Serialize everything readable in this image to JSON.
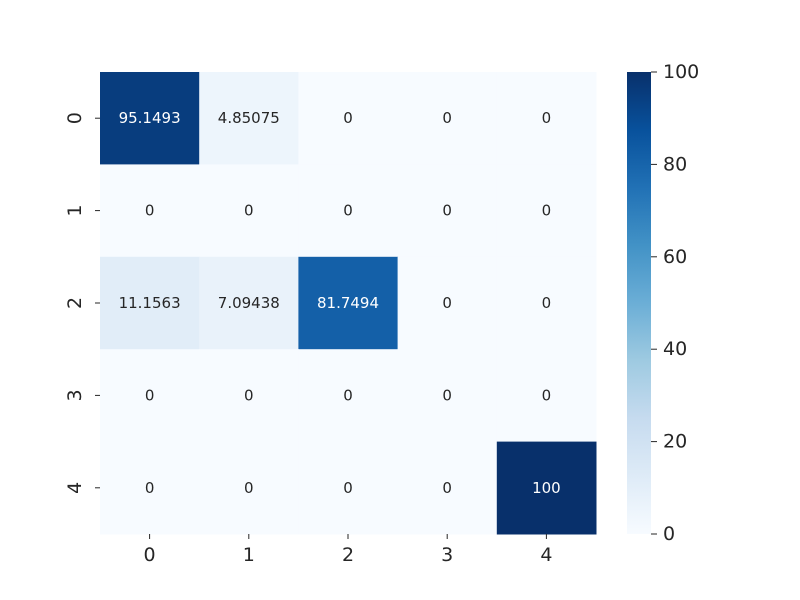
{
  "chart_data": {
    "type": "heatmap",
    "x_categories": [
      "0",
      "1",
      "2",
      "3",
      "4"
    ],
    "y_categories": [
      "0",
      "1",
      "2",
      "3",
      "4"
    ],
    "values": [
      [
        95.1493,
        4.85075,
        0,
        0,
        0
      ],
      [
        0,
        0,
        0,
        0,
        0
      ],
      [
        11.1563,
        7.09438,
        81.7494,
        0,
        0
      ],
      [
        0,
        0,
        0,
        0,
        0
      ],
      [
        0,
        0,
        0,
        0,
        100
      ]
    ],
    "value_labels": [
      [
        "95.1493",
        "4.85075",
        "0",
        "0",
        "0"
      ],
      [
        "0",
        "0",
        "0",
        "0",
        "0"
      ],
      [
        "11.1563",
        "7.09438",
        "81.7494",
        "0",
        "0"
      ],
      [
        "0",
        "0",
        "0",
        "0",
        "0"
      ],
      [
        "0",
        "0",
        "0",
        "0",
        "100"
      ]
    ],
    "colormap": "Blues",
    "vmin": 0,
    "vmax": 100,
    "colorbar_ticks": [
      "0",
      "20",
      "40",
      "60",
      "80",
      "100"
    ],
    "title": "",
    "xlabel": "",
    "ylabel": ""
  }
}
